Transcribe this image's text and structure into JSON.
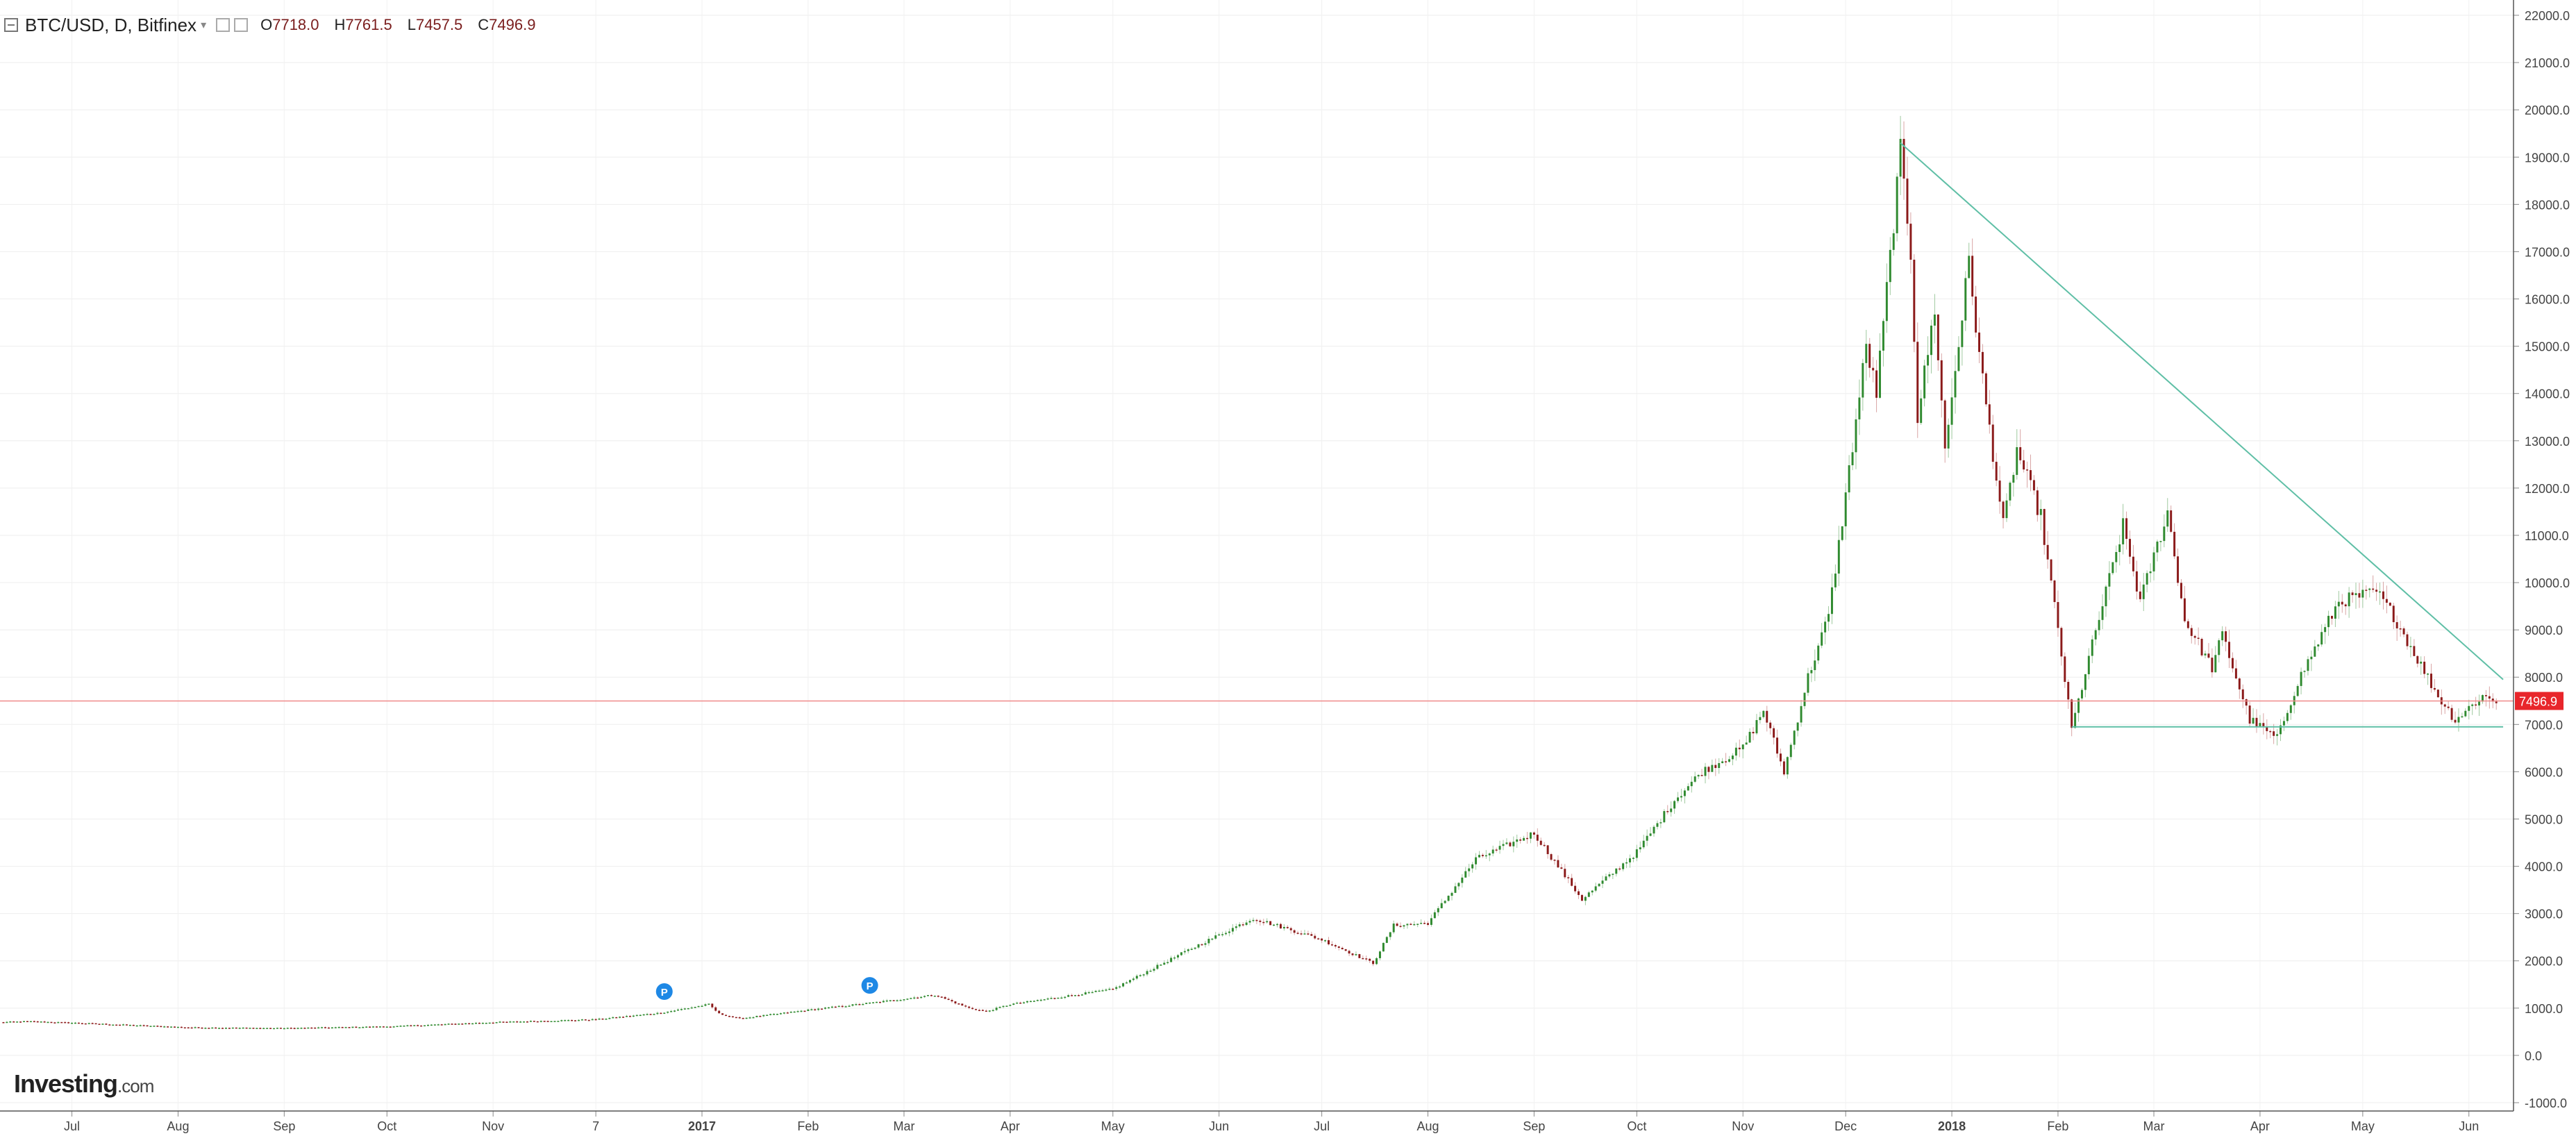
{
  "header": {
    "symbol": "BTC/USD, D, Bitfinex",
    "ohlc": [
      {
        "key": "O",
        "value": "7718.0"
      },
      {
        "key": "H",
        "value": "7761.5"
      },
      {
        "key": "L",
        "value": "7457.5"
      },
      {
        "key": "C",
        "value": "7496.9"
      }
    ]
  },
  "logo": {
    "text": "Investing",
    "suffix": ".com"
  },
  "price_badge": {
    "value": "7496.9",
    "color": "#e8262b"
  },
  "colors": {
    "up": "#2f8a2f",
    "down": "#8b1a1a",
    "trendline": "#5fbfa6",
    "price_line": "#f08a8a",
    "event_marker": "#1e88e5"
  },
  "events": [
    {
      "label": "P",
      "x": "2016-12-21",
      "y": 1350
    },
    {
      "label": "P",
      "x": "2017-02-19",
      "y": 1480
    }
  ],
  "chart_data": {
    "type": "candlestick",
    "x_range": [
      "2016-06-10",
      "2018-06-12"
    ],
    "ylim": [
      -1000,
      22000
    ],
    "y_ticks": [
      "22000.0",
      "21000.0",
      "20000.0",
      "19000.0",
      "18000.0",
      "17000.0",
      "16000.0",
      "15000.0",
      "14000.0",
      "13000.0",
      "12000.0",
      "11000.0",
      "10000.0",
      "9000.0",
      "8000.0",
      "7000.0",
      "6000.0",
      "5000.0",
      "4000.0",
      "3000.0",
      "2000.0",
      "1000.0",
      "0.0",
      "-1000.0"
    ],
    "x_ticks": [
      {
        "label": "Jul",
        "date": "2016-07-01",
        "bold": false
      },
      {
        "label": "Aug",
        "date": "2016-08-01",
        "bold": false
      },
      {
        "label": "Sep",
        "date": "2016-09-01",
        "bold": false
      },
      {
        "label": "Oct",
        "date": "2016-10-01",
        "bold": false
      },
      {
        "label": "Nov",
        "date": "2016-11-01",
        "bold": false
      },
      {
        "label": "7",
        "date": "2016-12-01",
        "bold": false
      },
      {
        "label": "2017",
        "date": "2017-01-01",
        "bold": true
      },
      {
        "label": "Feb",
        "date": "2017-02-01",
        "bold": false
      },
      {
        "label": "Mar",
        "date": "2017-03-01",
        "bold": false
      },
      {
        "label": "Apr",
        "date": "2017-04-01",
        "bold": false
      },
      {
        "label": "May",
        "date": "2017-05-01",
        "bold": false
      },
      {
        "label": "Jun",
        "date": "2017-06-01",
        "bold": false
      },
      {
        "label": "Jul",
        "date": "2017-07-01",
        "bold": false
      },
      {
        "label": "Aug",
        "date": "2017-08-01",
        "bold": false
      },
      {
        "label": "Sep",
        "date": "2017-09-01",
        "bold": false
      },
      {
        "label": "Oct",
        "date": "2017-10-01",
        "bold": false
      },
      {
        "label": "Nov",
        "date": "2017-11-01",
        "bold": false
      },
      {
        "label": "Dec",
        "date": "2017-12-01",
        "bold": false
      },
      {
        "label": "2018",
        "date": "2018-01-01",
        "bold": true
      },
      {
        "label": "Feb",
        "date": "2018-02-01",
        "bold": false
      },
      {
        "label": "Mar",
        "date": "2018-03-01",
        "bold": false
      },
      {
        "label": "Apr",
        "date": "2018-04-01",
        "bold": false
      },
      {
        "label": "May",
        "date": "2018-05-01",
        "bold": false
      },
      {
        "label": "Jun",
        "date": "2018-06-01",
        "bold": false
      }
    ],
    "price_keypoints": [
      [
        "2016-06-10",
        700
      ],
      [
        "2016-06-18",
        720
      ],
      [
        "2016-07-01",
        690
      ],
      [
        "2016-08-01",
        600
      ],
      [
        "2016-08-05",
        590
      ],
      [
        "2016-09-01",
        575
      ],
      [
        "2016-10-01",
        610
      ],
      [
        "2016-11-01",
        700
      ],
      [
        "2016-12-01",
        760
      ],
      [
        "2016-12-20",
        900
      ],
      [
        "2017-01-03",
        1080
      ],
      [
        "2017-01-06",
        880
      ],
      [
        "2017-01-12",
        780
      ],
      [
        "2017-02-01",
        960
      ],
      [
        "2017-02-24",
        1150
      ],
      [
        "2017-03-10",
        1280
      ],
      [
        "2017-03-20",
        1000
      ],
      [
        "2017-03-25",
        930
      ],
      [
        "2017-04-01",
        1080
      ],
      [
        "2017-05-01",
        1400
      ],
      [
        "2017-05-25",
        2300
      ],
      [
        "2017-06-11",
        2900
      ],
      [
        "2017-06-20",
        2700
      ],
      [
        "2017-07-01",
        2450
      ],
      [
        "2017-07-16",
        1950
      ],
      [
        "2017-07-22",
        2750
      ],
      [
        "2017-08-01",
        2800
      ],
      [
        "2017-08-15",
        4150
      ],
      [
        "2017-09-01",
        4700
      ],
      [
        "2017-09-15",
        3300
      ],
      [
        "2017-10-01",
        4300
      ],
      [
        "2017-10-12",
        5400
      ],
      [
        "2017-10-20",
        6000
      ],
      [
        "2017-11-01",
        6500
      ],
      [
        "2017-11-07",
        7300
      ],
      [
        "2017-11-12",
        6200
      ],
      [
        "2017-11-13",
        6000
      ],
      [
        "2017-11-20",
        8000
      ],
      [
        "2017-11-26",
        9300
      ],
      [
        "2017-11-29",
        10800
      ],
      [
        "2017-12-07",
        15000
      ],
      [
        "2017-12-10",
        14000
      ],
      [
        "2017-12-17",
        19100
      ],
      [
        "2017-12-20",
        17000
      ],
      [
        "2017-12-22",
        13500
      ],
      [
        "2017-12-27",
        15800
      ],
      [
        "2017-12-30",
        12800
      ],
      [
        "2018-01-06",
        16800
      ],
      [
        "2018-01-09",
        14800
      ],
      [
        "2018-01-16",
        11200
      ],
      [
        "2018-01-20",
        12800
      ],
      [
        "2018-01-27",
        11400
      ],
      [
        "2018-02-01",
        9000
      ],
      [
        "2018-02-05",
        6900
      ],
      [
        "2018-02-10",
        8400
      ],
      [
        "2018-02-20",
        11200
      ],
      [
        "2018-02-25",
        9600
      ],
      [
        "2018-03-05",
        11500
      ],
      [
        "2018-03-10",
        9200
      ],
      [
        "2018-03-18",
        8200
      ],
      [
        "2018-03-21",
        8900
      ],
      [
        "2018-03-29",
        7100
      ],
      [
        "2018-04-06",
        6700
      ],
      [
        "2018-04-12",
        7900
      ],
      [
        "2018-04-24",
        9600
      ],
      [
        "2018-05-05",
        9800
      ],
      [
        "2018-05-10",
        9300
      ],
      [
        "2018-05-23",
        7600
      ],
      [
        "2018-05-28",
        7100
      ],
      [
        "2018-06-05",
        7600
      ],
      [
        "2018-06-09",
        7500
      ]
    ],
    "trendlines": [
      {
        "name": "descending",
        "points": [
          [
            "2017-12-17",
            19300
          ],
          [
            "2018-06-11",
            7950
          ]
        ]
      },
      {
        "name": "support",
        "points": [
          [
            "2018-02-05",
            6950
          ],
          [
            "2018-06-11",
            6950
          ]
        ]
      }
    ],
    "current_price_line": 7496.9
  }
}
